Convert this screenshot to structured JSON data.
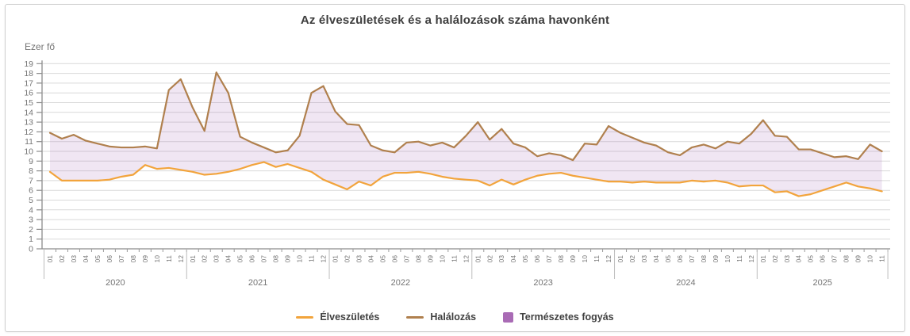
{
  "card": {
    "title": "Az élveszületések és a halálozások száma havonként",
    "unit_label": "Ezer fő"
  },
  "legend": [
    {
      "label": "Élveszületés",
      "color": "#F2A43C",
      "swatch": "line"
    },
    {
      "label": "Halálozás",
      "color": "#B0804E",
      "swatch": "line"
    },
    {
      "label": "Természetes fogyás",
      "color": "#A96BB5",
      "swatch": "area"
    }
  ],
  "chart_data": {
    "type": "area",
    "title": "Az élveszületések és a halálozások száma havonként",
    "ylabel": "Ezer fő",
    "ylim": [
      0,
      19
    ],
    "ytick_step": 1,
    "grid": true,
    "legend_position": "bottom",
    "years": [
      {
        "label": "2020",
        "months": [
          "01",
          "02",
          "03",
          "04",
          "05",
          "06",
          "07",
          "08",
          "09",
          "10",
          "11",
          "12"
        ]
      },
      {
        "label": "2021",
        "months": [
          "01",
          "02",
          "03",
          "04",
          "05",
          "06",
          "07",
          "08",
          "09",
          "10",
          "11",
          "12"
        ]
      },
      {
        "label": "2022",
        "months": [
          "01",
          "02",
          "03",
          "04",
          "05",
          "06",
          "07",
          "08",
          "09",
          "10",
          "11",
          "12"
        ]
      },
      {
        "label": "2023",
        "months": [
          "01",
          "02",
          "03",
          "04",
          "05",
          "06",
          "07",
          "08",
          "09",
          "10",
          "11",
          "12"
        ]
      },
      {
        "label": "2024",
        "months": [
          "01",
          "02",
          "03",
          "04",
          "05",
          "06",
          "07",
          "08",
          "09",
          "10",
          "11",
          "12"
        ]
      },
      {
        "label": "2025",
        "months": [
          "01",
          "02",
          "03",
          "04",
          "05",
          "06",
          "07",
          "08",
          "09",
          "10",
          "11"
        ]
      }
    ],
    "series": [
      {
        "name": "Élveszületés",
        "color": "#F2A43C",
        "values": [
          7.9,
          7.0,
          7.0,
          7.0,
          7.0,
          7.1,
          7.4,
          7.6,
          8.6,
          8.2,
          8.3,
          8.1,
          7.9,
          7.6,
          7.7,
          7.9,
          8.2,
          8.6,
          8.9,
          8.4,
          8.7,
          8.3,
          7.9,
          7.1,
          6.6,
          6.1,
          6.9,
          6.5,
          7.4,
          7.8,
          7.8,
          7.9,
          7.7,
          7.4,
          7.2,
          7.1,
          7.0,
          6.5,
          7.1,
          6.6,
          7.1,
          7.5,
          7.7,
          7.8,
          7.5,
          7.3,
          7.1,
          6.9,
          6.9,
          6.8,
          6.9,
          6.8,
          6.8,
          6.8,
          7.0,
          6.9,
          7.0,
          6.8,
          6.4,
          6.5,
          6.5,
          5.8,
          5.9,
          5.4,
          5.6,
          6.0,
          6.4,
          6.8,
          6.4,
          6.2,
          5.9
        ]
      },
      {
        "name": "Halálozás",
        "color": "#B0804E",
        "values": [
          11.9,
          11.3,
          11.7,
          11.1,
          10.8,
          10.5,
          10.4,
          10.4,
          10.5,
          10.3,
          16.3,
          17.4,
          14.5,
          12.1,
          18.1,
          16.0,
          11.5,
          10.9,
          10.4,
          9.9,
          10.1,
          11.6,
          16.0,
          16.7,
          14.1,
          12.8,
          12.7,
          10.6,
          10.1,
          9.9,
          10.9,
          11.0,
          10.6,
          10.9,
          10.4,
          11.6,
          13.0,
          11.2,
          12.3,
          10.8,
          10.4,
          9.5,
          9.8,
          9.6,
          9.1,
          10.8,
          10.7,
          12.6,
          11.9,
          11.4,
          10.9,
          10.6,
          9.9,
          9.6,
          10.4,
          10.7,
          10.3,
          11.0,
          10.8,
          11.8,
          13.2,
          11.6,
          11.5,
          10.2,
          10.2,
          9.8,
          9.4,
          9.5,
          9.2,
          10.7,
          10.0
        ]
      }
    ],
    "area_between": {
      "name": "Természetes fogyás",
      "color": "#A96BB5",
      "fill_opacity": 0.17
    }
  }
}
